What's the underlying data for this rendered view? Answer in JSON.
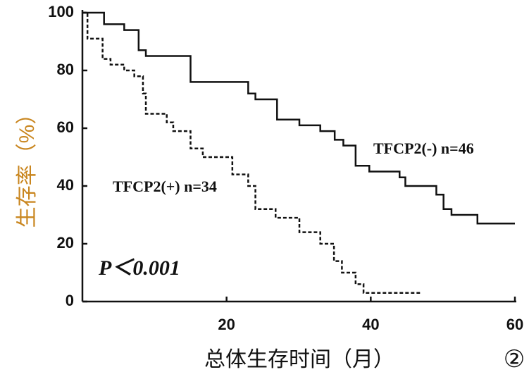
{
  "chart_data": {
    "type": "step",
    "x_label": "总体生存时间（月）",
    "y_label": "生存率（%）",
    "annotation": "P＜0.001",
    "panel_label": "②",
    "xlim": [
      0,
      60
    ],
    "ylim": [
      0,
      100
    ],
    "xticks": [
      20,
      40,
      60
    ],
    "yticks": [
      0,
      20,
      40,
      60,
      80,
      100
    ],
    "series": [
      {
        "name": "TFCP2(-) n=46",
        "color": "#111111",
        "dash": false,
        "x": [
          0,
          3,
          5.8,
          7.8,
          8.8,
          15,
          23,
          24,
          27,
          30.1,
          33,
          35,
          36.2,
          37.9,
          39.8,
          44,
          44.8,
          49.1,
          50.1,
          51.2,
          54.8,
          60
        ],
        "values": [
          100,
          96,
          94,
          87,
          85,
          76,
          72,
          70,
          63,
          61,
          59,
          56,
          54,
          47,
          45,
          43,
          40,
          37,
          32,
          30,
          27,
          27
        ]
      },
      {
        "name": "TFCP2(+) n=34",
        "color": "#111111",
        "dash": true,
        "x": [
          0,
          0.7,
          2.8,
          3.9,
          5.8,
          7.2,
          8.4,
          8.8,
          11.7,
          12.6,
          15,
          16.7,
          20.8,
          23,
          24,
          26.8,
          30.1,
          33,
          34.9,
          36,
          37.9,
          39,
          46.9
        ],
        "values": [
          100,
          91,
          84,
          82,
          80,
          78,
          72,
          65,
          62,
          59,
          53,
          50,
          44,
          40,
          32,
          29,
          24,
          20,
          14,
          10,
          6,
          3,
          3
        ]
      }
    ]
  }
}
